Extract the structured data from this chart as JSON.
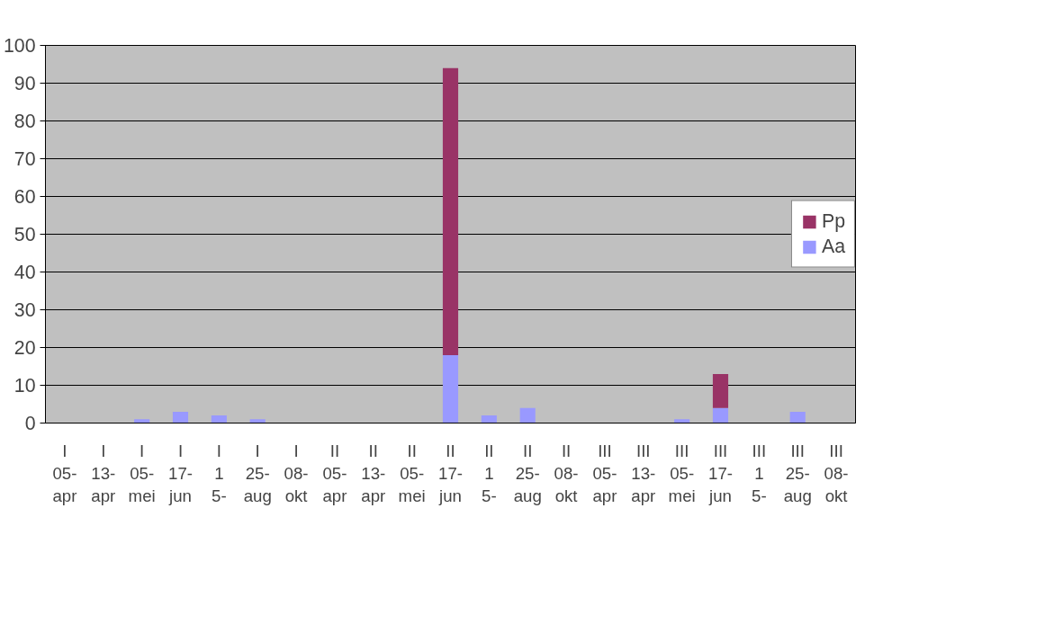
{
  "chart_data": {
    "type": "bar",
    "stacked": true,
    "categories": [
      "I\n05-\napr",
      "I\n13-\napr",
      "I\n05-\nmei",
      "I\n17-\njun",
      "I\n1\n5-",
      "I\n25-\naug",
      "I\n08-\nokt",
      "II\n05-\napr",
      "II\n13-\napr",
      "II\n05-\nmei",
      "II\n17-\njun",
      "II\n1\n5-",
      "II\n25-\naug",
      "II\n08-\nokt",
      "III\n05-\napr",
      "III\n13-\napr",
      "III\n05-\nmei",
      "III\n17-\njun",
      "III\n1\n5-",
      "III\n25-\naug",
      "III\n08-\nokt"
    ],
    "series": [
      {
        "name": "Aa",
        "color": "#9999ff",
        "values": [
          0,
          0,
          1,
          3,
          2,
          1,
          0,
          0,
          0,
          0,
          18,
          2,
          4,
          0,
          0,
          0,
          1,
          4,
          0,
          3,
          0
        ]
      },
      {
        "name": "Pp",
        "color": "#993366",
        "values": [
          0,
          0,
          0,
          0,
          0,
          0,
          0,
          0,
          0,
          0,
          76,
          0,
          0,
          0,
          0,
          0,
          0,
          9,
          0,
          0,
          0
        ]
      }
    ],
    "ylim": [
      0,
      100
    ],
    "yticks": [
      0,
      10,
      20,
      30,
      40,
      50,
      60,
      70,
      80,
      90,
      100
    ],
    "grid": "y",
    "legend": "right"
  }
}
